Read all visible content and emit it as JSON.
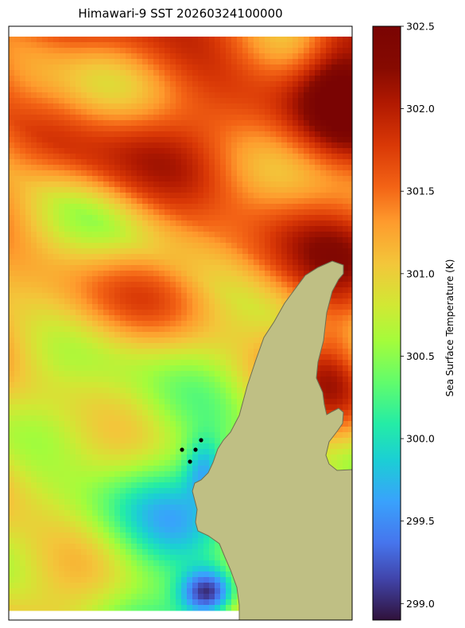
{
  "title": "Himawari-9 SST 20260324100000",
  "colorbar": {
    "label": "Sea Surface Temperature (K)",
    "min": 298.9,
    "max": 302.5,
    "ticks": [
      "299.0",
      "299.5",
      "300.0",
      "300.5",
      "301.0",
      "301.5",
      "302.0",
      "302.5"
    ],
    "colormap": "turbo"
  },
  "colors": {
    "land": "#bfbf84",
    "coastline": "#6f6f52",
    "stations": "#000000"
  },
  "stations": {
    "count": 4
  }
}
